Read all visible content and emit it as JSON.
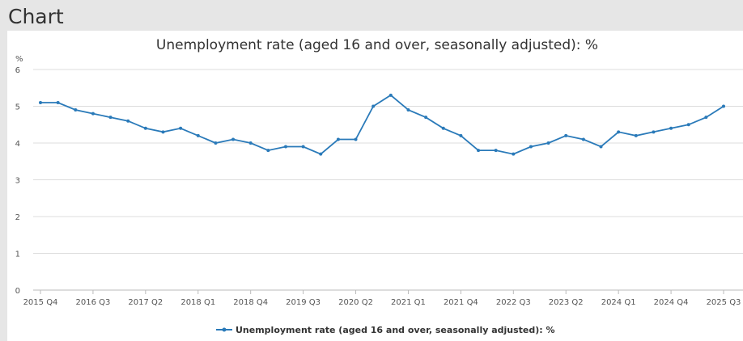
{
  "header": {
    "title": "Chart"
  },
  "colors": {
    "series": "#2a7ab9",
    "grid": "#dcdcdc",
    "axis": "#bbbbbb"
  },
  "chart_data": {
    "type": "line",
    "title": "Unemployment rate (aged 16 and over, seasonally adjusted): %",
    "ylabel": "%",
    "xlabel": "",
    "ylim": [
      0,
      6
    ],
    "yticks": [
      0,
      1,
      2,
      3,
      4,
      5,
      6
    ],
    "grid": true,
    "legend_position": "bottom",
    "x": [
      "2015 Q4",
      "2016 Q1",
      "2016 Q2",
      "2016 Q3",
      "2016 Q4",
      "2017 Q1",
      "2017 Q2",
      "2017 Q3",
      "2017 Q4",
      "2018 Q1",
      "2018 Q2",
      "2018 Q3",
      "2018 Q4",
      "2019 Q1",
      "2019 Q2",
      "2019 Q3",
      "2019 Q4",
      "2020 Q1",
      "2020 Q2",
      "2020 Q3",
      "2020 Q4",
      "2021 Q1",
      "2021 Q2",
      "2021 Q3",
      "2021 Q4",
      "2022 Q1",
      "2022 Q2",
      "2022 Q3",
      "2022 Q4",
      "2023 Q1",
      "2023 Q2",
      "2023 Q3",
      "2023 Q4",
      "2024 Q1",
      "2024 Q2",
      "2024 Q3",
      "2024 Q4",
      "2025 Q1",
      "2025 Q2",
      "2025 Q3"
    ],
    "xtick_labels": [
      "2015 Q4",
      "2016 Q3",
      "2017 Q2",
      "2018 Q1",
      "2018 Q4",
      "2019 Q3",
      "2020 Q2",
      "2021 Q1",
      "2021 Q4",
      "2022 Q3",
      "2023 Q2",
      "2024 Q1",
      "2024 Q4",
      "2025 Q3"
    ],
    "series": [
      {
        "name": "Unemployment rate (aged 16 and over, seasonally adjusted): %",
        "values": [
          5.1,
          5.1,
          4.9,
          4.8,
          4.7,
          4.6,
          4.4,
          4.3,
          4.4,
          4.2,
          4.0,
          4.1,
          4.0,
          3.8,
          3.9,
          3.9,
          3.7,
          4.1,
          4.1,
          5.0,
          5.3,
          4.9,
          4.7,
          4.4,
          4.2,
          3.8,
          3.8,
          3.7,
          3.9,
          4.0,
          4.2,
          4.1,
          3.9,
          4.3,
          4.2,
          4.3,
          4.4,
          4.5,
          4.7,
          5.0
        ]
      }
    ]
  }
}
